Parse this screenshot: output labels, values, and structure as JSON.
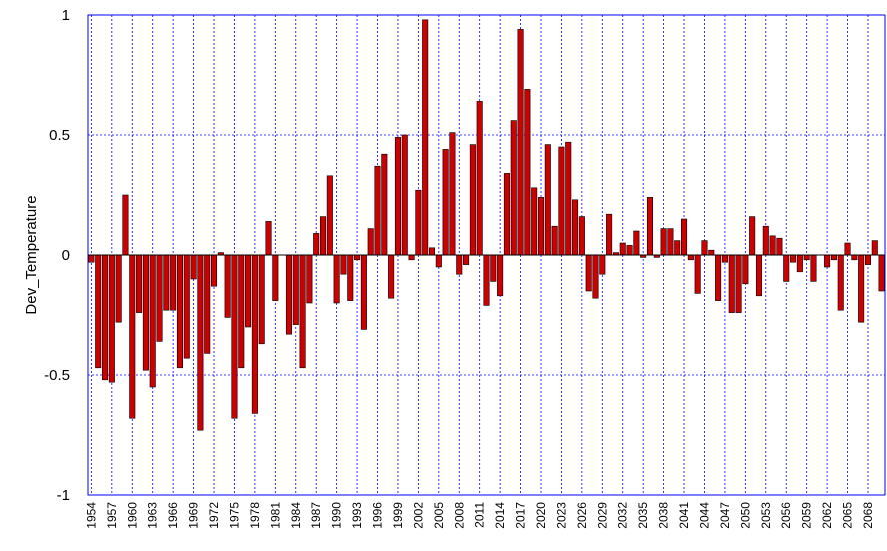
{
  "chart_data": {
    "type": "bar",
    "y_label": "Dev_Temperature",
    "categories": [
      "1954",
      null,
      null,
      "1957",
      null,
      null,
      "1960",
      null,
      null,
      "1963",
      null,
      null,
      "1966",
      null,
      null,
      "1969",
      null,
      null,
      "1972",
      null,
      null,
      "1975",
      null,
      null,
      "1978",
      null,
      null,
      "1981",
      null,
      null,
      "1984",
      null,
      null,
      "1987",
      null,
      null,
      "1990",
      null,
      null,
      "1993",
      null,
      null,
      "1996",
      null,
      null,
      "1999",
      null,
      null,
      "2002",
      null,
      null,
      "2005",
      null,
      null,
      "2008",
      null,
      null,
      "2011",
      null,
      null,
      "2014",
      null,
      null,
      "2017",
      null,
      null,
      "2020",
      null,
      null,
      "2023",
      null,
      null,
      "2026",
      null,
      null,
      "2029",
      null,
      null,
      "2032",
      null,
      null,
      "2035",
      null,
      null,
      "2038",
      null,
      null,
      "2041",
      null,
      null,
      "2044",
      null,
      null,
      "2047",
      null,
      null,
      "2050",
      null,
      null,
      "2053",
      null,
      null,
      "2056",
      null,
      null,
      "2059",
      null,
      null,
      "2062",
      null,
      null,
      "2065",
      null,
      null,
      "2068",
      null,
      null
    ],
    "values": [
      -0.03,
      -0.47,
      -0.52,
      -0.53,
      -0.28,
      0.25,
      -0.68,
      -0.24,
      -0.48,
      -0.55,
      -0.36,
      -0.23,
      -0.23,
      -0.47,
      -0.43,
      -0.1,
      -0.73,
      -0.41,
      -0.13,
      0.01,
      -0.26,
      -0.68,
      -0.47,
      -0.3,
      -0.66,
      -0.37,
      0.14,
      -0.19,
      0,
      -0.33,
      -0.29,
      -0.47,
      -0.2,
      0.09,
      0.16,
      0.33,
      -0.2,
      -0.08,
      -0.19,
      -0.02,
      -0.31,
      0.11,
      0.37,
      0.42,
      -0.18,
      0.49,
      0.5,
      -0.02,
      0.27,
      0.98,
      0.03,
      -0.05,
      0.44,
      0.51,
      -0.08,
      -0.04,
      0.46,
      0.64,
      -0.21,
      -0.11,
      -0.17,
      0.34,
      0.56,
      0.94,
      0.69,
      0.28,
      0.24,
      0.46,
      0.12,
      0.45,
      0.47,
      0.23,
      0.16,
      -0.15,
      -0.18,
      -0.08,
      0.17,
      0.01,
      0.05,
      0.04,
      0.1,
      -0.01,
      0.24,
      -0.01,
      0.11,
      0.11,
      0.06,
      0.15,
      -0.02,
      -0.16,
      0.06,
      0.02,
      -0.19,
      -0.03,
      -0.24,
      -0.24,
      -0.12,
      0.16,
      -0.17,
      0.12,
      0.08,
      0.07,
      -0.11,
      -0.03,
      -0.07,
      -0.02,
      -0.11,
      0.0,
      -0.05,
      -0.02,
      -0.23,
      0.05,
      -0.02,
      -0.28,
      -0.04,
      0.06,
      -0.15
    ],
    "color": "#cc0000",
    "ylim": [
      -1,
      1
    ],
    "yticks": [
      -1,
      -0.5,
      0,
      0.5,
      1
    ],
    "grid": true
  }
}
